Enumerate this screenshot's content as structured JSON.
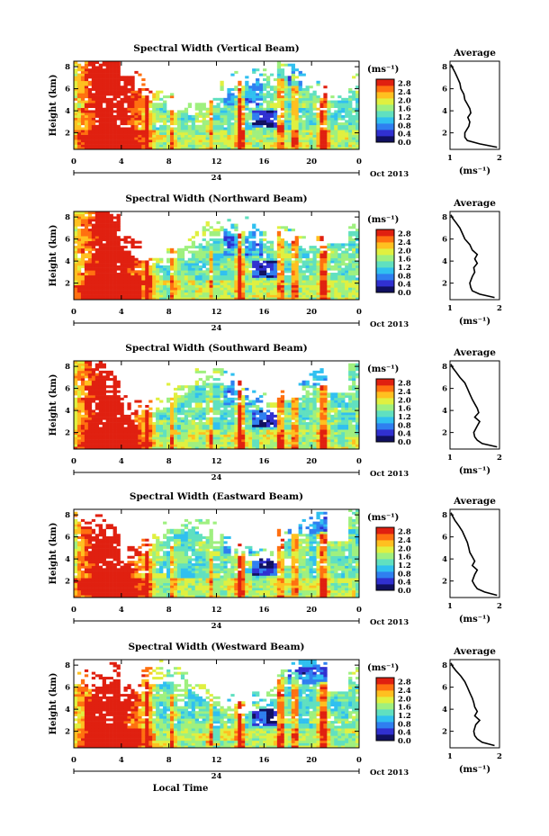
{
  "figure": {
    "xlabel": "Local Time",
    "xticks": [
      "0",
      "4",
      "8",
      "12",
      "16",
      "20",
      "0"
    ],
    "day_label": "24",
    "date_label": "Oct 2013",
    "ylabel": "Height (km)",
    "yticks": [
      "2",
      "4",
      "6",
      "8"
    ],
    "colorbar_unit": "(ms⁻¹)",
    "colorbar_ticks": [
      "0.0",
      "0.4",
      "0.8",
      "1.2",
      "1.6",
      "2.0",
      "2.4",
      "2.8"
    ],
    "colorbar_colors": [
      "#101060",
      "#3030d0",
      "#2f7ff0",
      "#30c0f0",
      "#60e0c0",
      "#9ff07f",
      "#e0f040",
      "#ffc020",
      "#ff7010",
      "#e02010"
    ],
    "average_title": "Average",
    "average_xlabel": "(ms⁻¹)"
  },
  "chart_data": [
    {
      "type": "heatmap",
      "title": "Spectral Width (Vertical Beam)",
      "xlabel": "",
      "ylabel": "Height (km)",
      "xlim": [
        0,
        24
      ],
      "ylim": [
        0.5,
        8.5
      ],
      "clim": [
        0,
        3.0
      ],
      "average": {
        "type": "line",
        "title": "Average",
        "xlabel": "(ms⁻¹)",
        "xlim": [
          1,
          2
        ],
        "xticks": [
          "1",
          "2"
        ],
        "yticks": [
          "2",
          "4",
          "6",
          "8"
        ],
        "x": [
          1.95,
          1.6,
          1.35,
          1.3,
          1.3,
          1.38,
          1.4,
          1.36,
          1.42,
          1.4,
          1.35,
          1.3,
          1.28,
          1.22,
          1.2,
          1.15,
          1.1,
          1.05,
          1.02
        ],
        "y": [
          0.7,
          1.0,
          1.3,
          1.6,
          2.0,
          2.6,
          3.0,
          3.4,
          3.8,
          4.2,
          4.6,
          5.0,
          5.5,
          6.0,
          6.5,
          7.0,
          7.5,
          7.9,
          8.2
        ]
      }
    },
    {
      "type": "heatmap",
      "title": "Spectral Width (Northward Beam)",
      "xlabel": "",
      "ylabel": "Height (km)",
      "xlim": [
        0,
        24
      ],
      "ylim": [
        0.5,
        8.5
      ],
      "clim": [
        0,
        3.0
      ],
      "average": {
        "type": "line",
        "title": "Average",
        "xlabel": "(ms⁻¹)",
        "xlim": [
          1,
          2
        ],
        "xticks": [
          "1",
          "2"
        ],
        "yticks": [
          "2",
          "4",
          "6",
          "8"
        ],
        "x": [
          1.9,
          1.6,
          1.45,
          1.42,
          1.4,
          1.45,
          1.5,
          1.48,
          1.55,
          1.5,
          1.55,
          1.45,
          1.4,
          1.3,
          1.25,
          1.2,
          1.12,
          1.05,
          1.02
        ],
        "y": [
          0.7,
          1.0,
          1.3,
          1.6,
          2.0,
          2.6,
          3.0,
          3.4,
          3.8,
          4.2,
          4.6,
          5.0,
          5.5,
          6.0,
          6.5,
          7.0,
          7.5,
          7.9,
          8.2
        ]
      }
    },
    {
      "type": "heatmap",
      "title": "Spectral Width (Southward Beam)",
      "xlabel": "",
      "ylabel": "Height (km)",
      "xlim": [
        0,
        24
      ],
      "ylim": [
        0.5,
        8.5
      ],
      "clim": [
        0,
        3.0
      ],
      "average": {
        "type": "line",
        "title": "Average",
        "xlabel": "(ms⁻¹)",
        "xlim": [
          1,
          2
        ],
        "xticks": [
          "1",
          "2"
        ],
        "yticks": [
          "2",
          "4",
          "6",
          "8"
        ],
        "x": [
          1.95,
          1.65,
          1.55,
          1.5,
          1.48,
          1.55,
          1.6,
          1.5,
          1.58,
          1.55,
          1.5,
          1.45,
          1.4,
          1.35,
          1.3,
          1.2,
          1.12,
          1.05,
          1.02
        ],
        "y": [
          0.7,
          1.0,
          1.3,
          1.6,
          2.0,
          2.6,
          3.0,
          3.4,
          3.8,
          4.2,
          4.6,
          5.0,
          5.5,
          6.0,
          6.5,
          7.0,
          7.5,
          7.9,
          8.2
        ]
      }
    },
    {
      "type": "heatmap",
      "title": "Spectral Width (Eastward Beam)",
      "xlabel": "",
      "ylabel": "Height (km)",
      "xlim": [
        0,
        24
      ],
      "ylim": [
        0.5,
        8.5
      ],
      "clim": [
        0,
        3.0
      ],
      "average": {
        "type": "line",
        "title": "Average",
        "xlabel": "(ms⁻¹)",
        "xlim": [
          1,
          2
        ],
        "xticks": [
          "1",
          "2"
        ],
        "yticks": [
          "2",
          "4",
          "6",
          "8"
        ],
        "x": [
          1.95,
          1.7,
          1.55,
          1.5,
          1.45,
          1.5,
          1.55,
          1.45,
          1.5,
          1.45,
          1.4,
          1.38,
          1.35,
          1.3,
          1.25,
          1.18,
          1.1,
          1.05,
          1.02
        ],
        "y": [
          0.7,
          1.0,
          1.3,
          1.6,
          2.0,
          2.6,
          3.0,
          3.4,
          3.8,
          4.2,
          4.6,
          5.0,
          5.5,
          6.0,
          6.5,
          7.0,
          7.5,
          7.9,
          8.2
        ]
      }
    },
    {
      "type": "heatmap",
      "title": "Spectral Width (Westward Beam)",
      "xlabel": "Local Time",
      "ylabel": "Height (km)",
      "xlim": [
        0,
        24
      ],
      "ylim": [
        0.5,
        8.5
      ],
      "clim": [
        0,
        3.0
      ],
      "average": {
        "type": "line",
        "title": "Average",
        "xlabel": "(ms⁻¹)",
        "xlim": [
          1,
          2
        ],
        "xticks": [
          "1",
          "2"
        ],
        "yticks": [
          "2",
          "4",
          "6",
          "8"
        ],
        "x": [
          1.9,
          1.65,
          1.55,
          1.5,
          1.48,
          1.52,
          1.6,
          1.5,
          1.55,
          1.5,
          1.48,
          1.45,
          1.4,
          1.35,
          1.3,
          1.22,
          1.12,
          1.05,
          1.02
        ],
        "y": [
          0.7,
          1.0,
          1.3,
          1.6,
          2.0,
          2.6,
          3.0,
          3.4,
          3.8,
          4.2,
          4.6,
          5.0,
          5.5,
          6.0,
          6.5,
          7.0,
          7.5,
          7.9,
          8.2
        ]
      }
    }
  ]
}
